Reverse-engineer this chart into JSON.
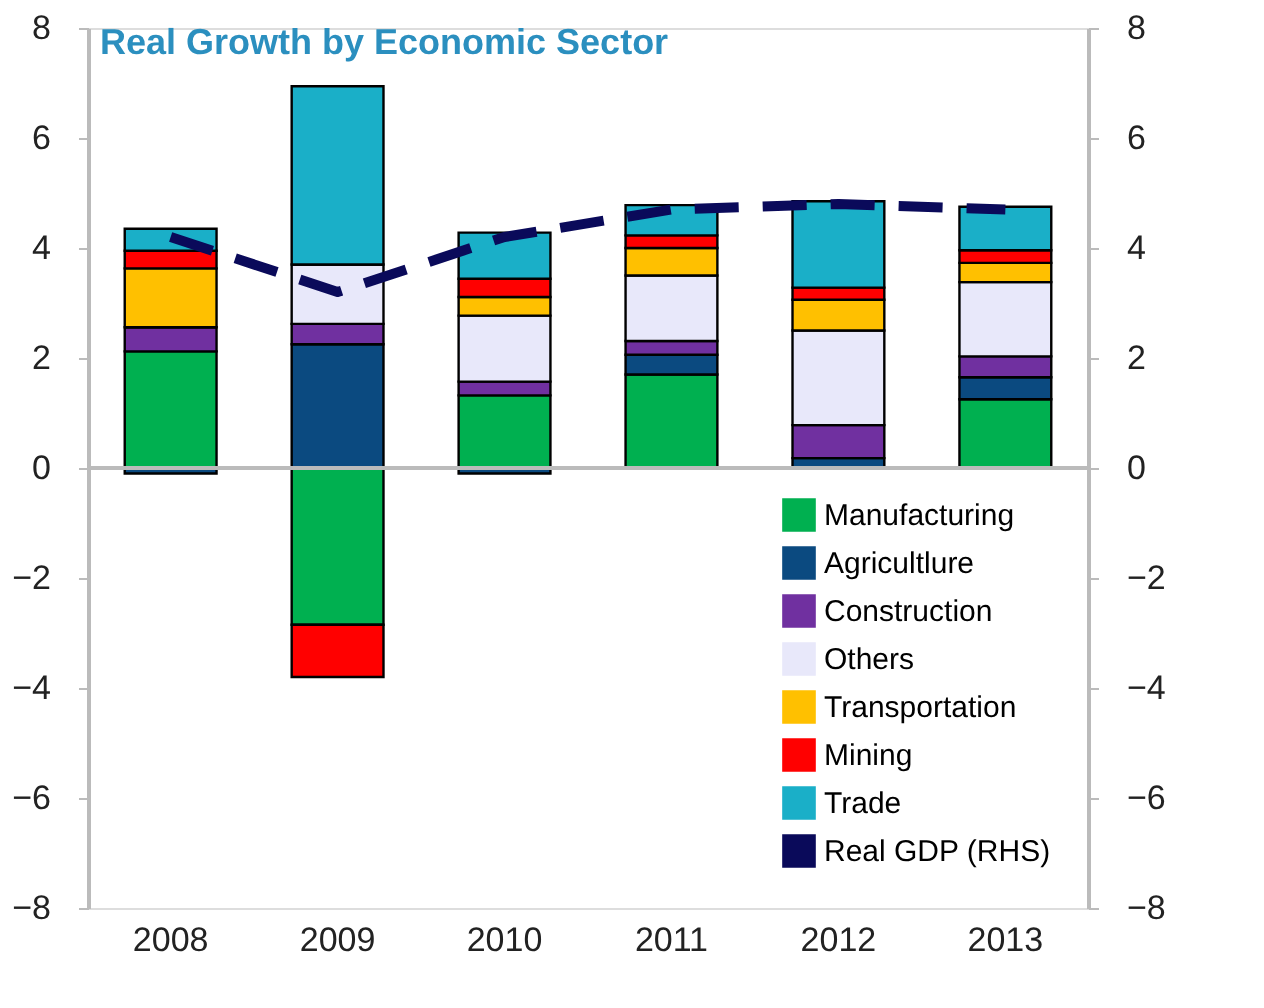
{
  "chart_data": {
    "type": "bar",
    "stacked": true,
    "title": "Real Growth by Economic Sector",
    "categories": [
      "2008",
      "2009",
      "2010",
      "2011",
      "2012",
      "2013"
    ],
    "series": [
      {
        "name": "Manufacturing",
        "color": "#00b050",
        "values": [
          2.12,
          -2.85,
          1.32,
          1.7,
          0,
          1.25
        ]
      },
      {
        "name": "Agricultlure",
        "color": "#0b4a80",
        "values": [
          -0.1,
          2.25,
          -0.1,
          0.36,
          0.18,
          0.4
        ]
      },
      {
        "name": "Construction",
        "color": "#7030a0",
        "values": [
          0.44,
          0.37,
          0.25,
          0.25,
          0.6,
          0.38
        ]
      },
      {
        "name": "Others",
        "color": "#e8e8fa",
        "values": [
          0,
          1.08,
          1.2,
          1.19,
          1.72,
          1.35
        ]
      },
      {
        "name": "Transportation",
        "color": "#ffc000",
        "values": [
          1.07,
          0,
          0.34,
          0.5,
          0.56,
          0.35
        ]
      },
      {
        "name": "Mining",
        "color": "#ff0000",
        "values": [
          0.32,
          -0.95,
          0.33,
          0.23,
          0.22,
          0.23
        ]
      },
      {
        "name": "Trade",
        "color": "#1aafc8",
        "values": [
          0.4,
          3.24,
          0.84,
          0.55,
          1.57,
          0.79
        ]
      },
      {
        "name": "Real GDP (RHS)",
        "type": "line",
        "axis": "y2",
        "line_style": "dashed",
        "color": "#0a0a5a",
        "values": [
          4.2,
          3.2,
          4.2,
          4.7,
          4.8,
          4.7
        ]
      }
    ],
    "ylim": [
      -8,
      8
    ],
    "yticks": [
      -8,
      -6,
      -4,
      -2,
      0,
      2,
      4,
      6,
      8
    ],
    "y2lim": [
      -8,
      8
    ],
    "y2ticks": [
      -8,
      -6,
      -4,
      -2,
      0,
      2,
      4,
      6,
      8
    ],
    "ref_lines": [
      {
        "axis": "y",
        "value": 0,
        "color": "#bbbbbb"
      }
    ],
    "grid": false,
    "legend": "bottom right"
  }
}
